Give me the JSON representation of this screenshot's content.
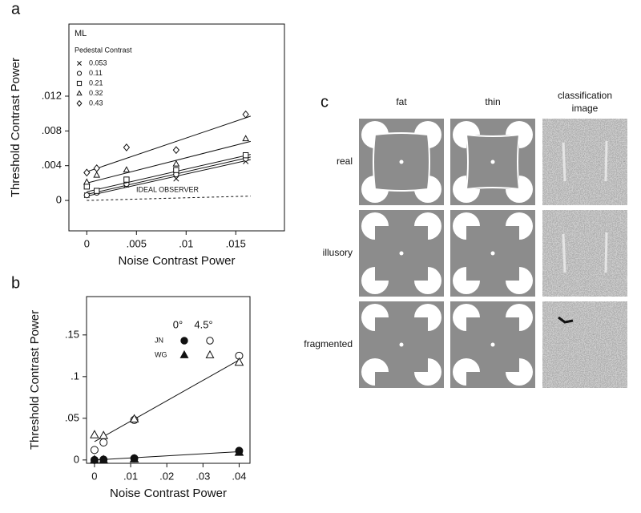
{
  "chart_data": [
    {
      "type": "scatter",
      "panel": "a",
      "xlabel": "Noise Contrast Power",
      "ylabel": "Threshold Contrast Power",
      "annotation": "ML",
      "legend_title": "Pedestal Contrast",
      "x": [
        0,
        0.001,
        0.004,
        0.009,
        0.016
      ],
      "line_x": [
        0,
        0.0165
      ],
      "series": [
        {
          "name": "0.053",
          "marker": "x",
          "values": [
            0.0006,
            0.001,
            0.0018,
            0.0025,
            0.0045
          ],
          "line": [
            0.0005,
            0.0047
          ]
        },
        {
          "name": "0.11",
          "marker": "circle",
          "values": [
            0.0006,
            0.0009,
            0.0019,
            0.003,
            0.0048
          ],
          "line": [
            0.0007,
            0.005
          ]
        },
        {
          "name": "0.21",
          "marker": "square",
          "values": [
            0.0016,
            0.0011,
            0.0024,
            0.0035,
            0.0052
          ],
          "line": [
            0.001,
            0.0053
          ]
        },
        {
          "name": "0.32",
          "marker": "triangle",
          "values": [
            0.0021,
            0.0029,
            0.0035,
            0.0042,
            0.0071
          ],
          "line": [
            0.002,
            0.0068
          ]
        },
        {
          "name": "0.43",
          "marker": "diamond",
          "values": [
            0.0032,
            0.0037,
            0.0061,
            0.0058,
            0.0099
          ],
          "line": [
            0.0033,
            0.0097
          ]
        }
      ],
      "reference": {
        "label": "IDEAL OBSERVER",
        "values": [
          0,
          0.0005
        ]
      },
      "xlim": [
        -0.0018,
        0.0199
      ],
      "ylim": [
        -0.0035,
        0.0203
      ],
      "xticks": [
        0,
        {
          "value": 0.005,
          "label": ".005"
        },
        {
          "value": 0.01,
          "label": ".01"
        },
        {
          "value": 0.015,
          "label": ".015"
        }
      ],
      "yticks": [
        0,
        {
          "value": 0.004,
          "label": ".004"
        },
        {
          "value": 0.008,
          "label": ".008"
        },
        {
          "value": 0.012,
          "label": ".012"
        }
      ]
    },
    {
      "type": "scatter",
      "panel": "b",
      "xlabel": "Noise Contrast Power",
      "ylabel": "Threshold Contrast Power",
      "legend": {
        "columns": [
          "0°",
          "4.5°"
        ],
        "rows": [
          "JN",
          "WG"
        ]
      },
      "x": [
        0,
        0.0025,
        0.011,
        0.04
      ],
      "line_x": [
        0,
        0.04
      ],
      "series": [
        {
          "marker": "circle",
          "filled": true,
          "values": [
            0,
            0.0005,
            0.002,
            0.011
          ],
          "line": [
            0,
            0.01
          ]
        },
        {
          "marker": "circle",
          "filled": false,
          "values": [
            0.012,
            0.021,
            0.048,
            0.125
          ],
          "line": [
            0.022,
            0.12
          ]
        },
        {
          "marker": "triangle",
          "filled": true,
          "values": [
            0,
            0,
            0.001,
            0.009
          ]
        },
        {
          "marker": "triangle",
          "filled": false,
          "values": [
            0.03,
            0.029,
            0.049,
            0.117
          ]
        }
      ],
      "xlim": [
        -0.0022,
        0.043
      ],
      "ylim": [
        -0.004,
        0.196
      ],
      "xticks": [
        0,
        {
          "value": 0.01,
          "label": ".01"
        },
        {
          "value": 0.02,
          "label": ".02"
        },
        {
          "value": 0.03,
          "label": ".03"
        },
        {
          "value": 0.04,
          "label": ".04"
        }
      ],
      "yticks": [
        0,
        {
          "value": 0.05,
          "label": ".05"
        },
        {
          "value": 0.1,
          "label": ".1"
        },
        {
          "value": 0.15,
          "label": ".15"
        }
      ]
    }
  ],
  "panel_c": {
    "label": "c",
    "columns": [
      "fat",
      "thin",
      "classification image"
    ],
    "rows": [
      "real",
      "illusory",
      "fragmented"
    ]
  }
}
